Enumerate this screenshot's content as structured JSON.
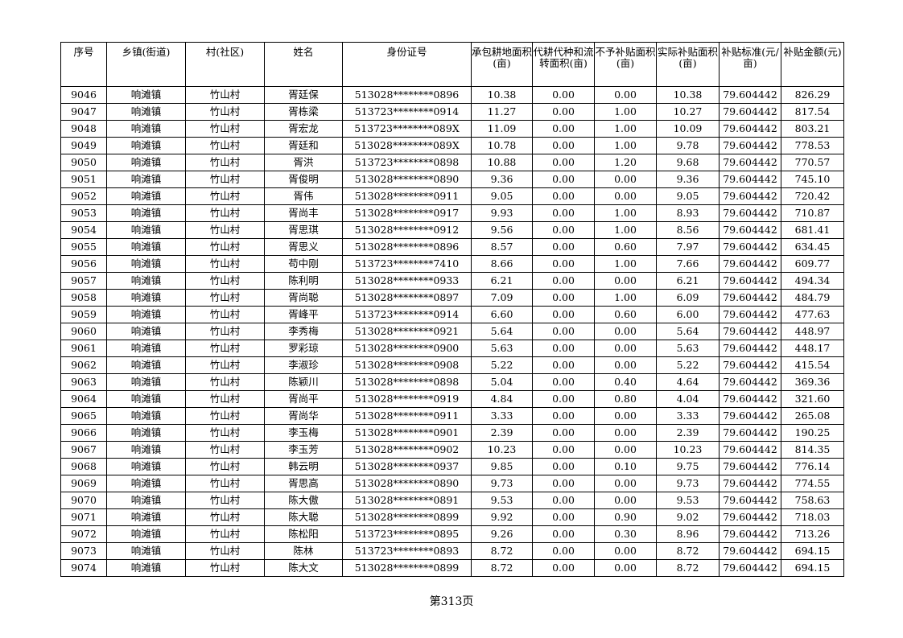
{
  "table": {
    "headers": [
      "序号",
      "乡镇(街道)",
      "村(社区)",
      "姓名",
      "身份证号",
      "承包耕地面积(亩)",
      "代耕代种和流转面积(亩)",
      "不予补贴面积(亩)",
      "实际补贴面积(亩)",
      "补贴标准(元/亩)",
      "补贴金额(元)"
    ],
    "rows": [
      [
        "9046",
        "响滩镇",
        "竹山村",
        "胥廷保",
        "513028********0896",
        "10.38",
        "0.00",
        "0.00",
        "10.38",
        "79.604442",
        "826.29"
      ],
      [
        "9047",
        "响滩镇",
        "竹山村",
        "胥栋梁",
        "513723********0914",
        "11.27",
        "0.00",
        "1.00",
        "10.27",
        "79.604442",
        "817.54"
      ],
      [
        "9048",
        "响滩镇",
        "竹山村",
        "胥宏龙",
        "513723********089X",
        "11.09",
        "0.00",
        "1.00",
        "10.09",
        "79.604442",
        "803.21"
      ],
      [
        "9049",
        "响滩镇",
        "竹山村",
        "胥廷和",
        "513028********089X",
        "10.78",
        "0.00",
        "1.00",
        "9.78",
        "79.604442",
        "778.53"
      ],
      [
        "9050",
        "响滩镇",
        "竹山村",
        "胥洪",
        "513723********0898",
        "10.88",
        "0.00",
        "1.20",
        "9.68",
        "79.604442",
        "770.57"
      ],
      [
        "9051",
        "响滩镇",
        "竹山村",
        "胥俊明",
        "513028********0890",
        "9.36",
        "0.00",
        "0.00",
        "9.36",
        "79.604442",
        "745.10"
      ],
      [
        "9052",
        "响滩镇",
        "竹山村",
        "胥伟",
        "513028********0911",
        "9.05",
        "0.00",
        "0.00",
        "9.05",
        "79.604442",
        "720.42"
      ],
      [
        "9053",
        "响滩镇",
        "竹山村",
        "胥尚丰",
        "513028********0917",
        "9.93",
        "0.00",
        "1.00",
        "8.93",
        "79.604442",
        "710.87"
      ],
      [
        "9054",
        "响滩镇",
        "竹山村",
        "胥思琪",
        "513028********0912",
        "9.56",
        "0.00",
        "1.00",
        "8.56",
        "79.604442",
        "681.41"
      ],
      [
        "9055",
        "响滩镇",
        "竹山村",
        "胥思义",
        "513028********0896",
        "8.57",
        "0.00",
        "0.60",
        "7.97",
        "79.604442",
        "634.45"
      ],
      [
        "9056",
        "响滩镇",
        "竹山村",
        "苟中刚",
        "513723********7410",
        "8.66",
        "0.00",
        "1.00",
        "7.66",
        "79.604442",
        "609.77"
      ],
      [
        "9057",
        "响滩镇",
        "竹山村",
        "陈利明",
        "513028********0933",
        "6.21",
        "0.00",
        "0.00",
        "6.21",
        "79.604442",
        "494.34"
      ],
      [
        "9058",
        "响滩镇",
        "竹山村",
        "胥尚聪",
        "513028********0897",
        "7.09",
        "0.00",
        "1.00",
        "6.09",
        "79.604442",
        "484.79"
      ],
      [
        "9059",
        "响滩镇",
        "竹山村",
        "胥峰平",
        "513723********0914",
        "6.60",
        "0.00",
        "0.60",
        "6.00",
        "79.604442",
        "477.63"
      ],
      [
        "9060",
        "响滩镇",
        "竹山村",
        "李秀梅",
        "513028********0921",
        "5.64",
        "0.00",
        "0.00",
        "5.64",
        "79.604442",
        "448.97"
      ],
      [
        "9061",
        "响滩镇",
        "竹山村",
        "罗彩琼",
        "513028********0900",
        "5.63",
        "0.00",
        "0.00",
        "5.63",
        "79.604442",
        "448.17"
      ],
      [
        "9062",
        "响滩镇",
        "竹山村",
        "李淑珍",
        "513028********0908",
        "5.22",
        "0.00",
        "0.00",
        "5.22",
        "79.604442",
        "415.54"
      ],
      [
        "9063",
        "响滩镇",
        "竹山村",
        "陈颖川",
        "513028********0898",
        "5.04",
        "0.00",
        "0.40",
        "4.64",
        "79.604442",
        "369.36"
      ],
      [
        "9064",
        "响滩镇",
        "竹山村",
        "胥尚平",
        "513028********0919",
        "4.84",
        "0.00",
        "0.80",
        "4.04",
        "79.604442",
        "321.60"
      ],
      [
        "9065",
        "响滩镇",
        "竹山村",
        "胥尚华",
        "513028********0911",
        "3.33",
        "0.00",
        "0.00",
        "3.33",
        "79.604442",
        "265.08"
      ],
      [
        "9066",
        "响滩镇",
        "竹山村",
        "李玉梅",
        "513028********0901",
        "2.39",
        "0.00",
        "0.00",
        "2.39",
        "79.604442",
        "190.25"
      ],
      [
        "9067",
        "响滩镇",
        "竹山村",
        "李玉芳",
        "513028********0902",
        "10.23",
        "0.00",
        "0.00",
        "10.23",
        "79.604442",
        "814.35"
      ],
      [
        "9068",
        "响滩镇",
        "竹山村",
        "韩云明",
        "513028********0937",
        "9.85",
        "0.00",
        "0.10",
        "9.75",
        "79.604442",
        "776.14"
      ],
      [
        "9069",
        "响滩镇",
        "竹山村",
        "胥思高",
        "513028********0890",
        "9.73",
        "0.00",
        "0.00",
        "9.73",
        "79.604442",
        "774.55"
      ],
      [
        "9070",
        "响滩镇",
        "竹山村",
        "陈大傲",
        "513028********0891",
        "9.53",
        "0.00",
        "0.00",
        "9.53",
        "79.604442",
        "758.63"
      ],
      [
        "9071",
        "响滩镇",
        "竹山村",
        "陈大聪",
        "513028********0899",
        "9.92",
        "0.00",
        "0.90",
        "9.02",
        "79.604442",
        "718.03"
      ],
      [
        "9072",
        "响滩镇",
        "竹山村",
        "陈松阳",
        "513723********0895",
        "9.26",
        "0.00",
        "0.30",
        "8.96",
        "79.604442",
        "713.26"
      ],
      [
        "9073",
        "响滩镇",
        "竹山村",
        "陈林",
        "513723********0893",
        "8.72",
        "0.00",
        "0.00",
        "8.72",
        "79.604442",
        "694.15"
      ],
      [
        "9074",
        "响滩镇",
        "竹山村",
        "陈大文",
        "513028********0899",
        "8.72",
        "0.00",
        "0.00",
        "8.72",
        "79.604442",
        "694.15"
      ]
    ]
  },
  "footer": {
    "page_label": "第313页"
  }
}
